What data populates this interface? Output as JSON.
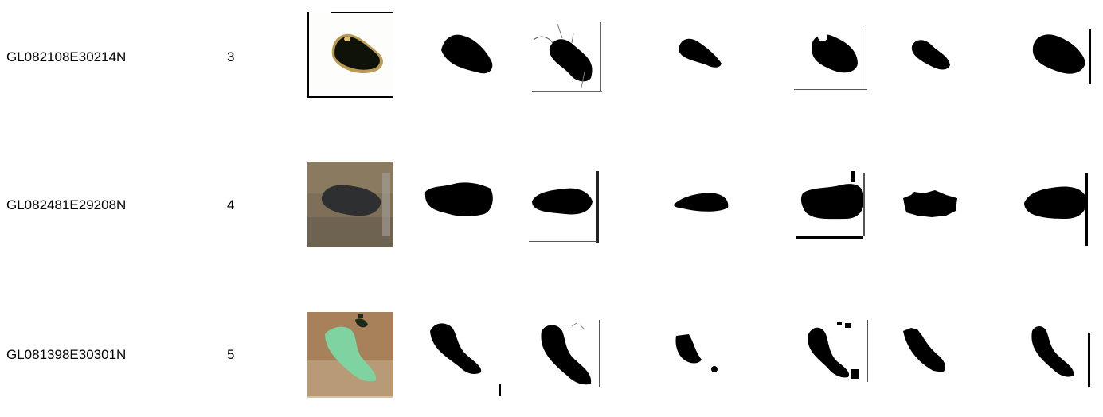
{
  "rows": [
    {
      "id": "GL082108E30214N",
      "number": "3"
    },
    {
      "id": "GL082481E29208N",
      "number": "4"
    },
    {
      "id": "GL081398E30301N",
      "number": "5"
    }
  ],
  "colors": {
    "mask": "#000000",
    "background": "#ffffff",
    "lake_water_row5": "#7ed3a0"
  }
}
